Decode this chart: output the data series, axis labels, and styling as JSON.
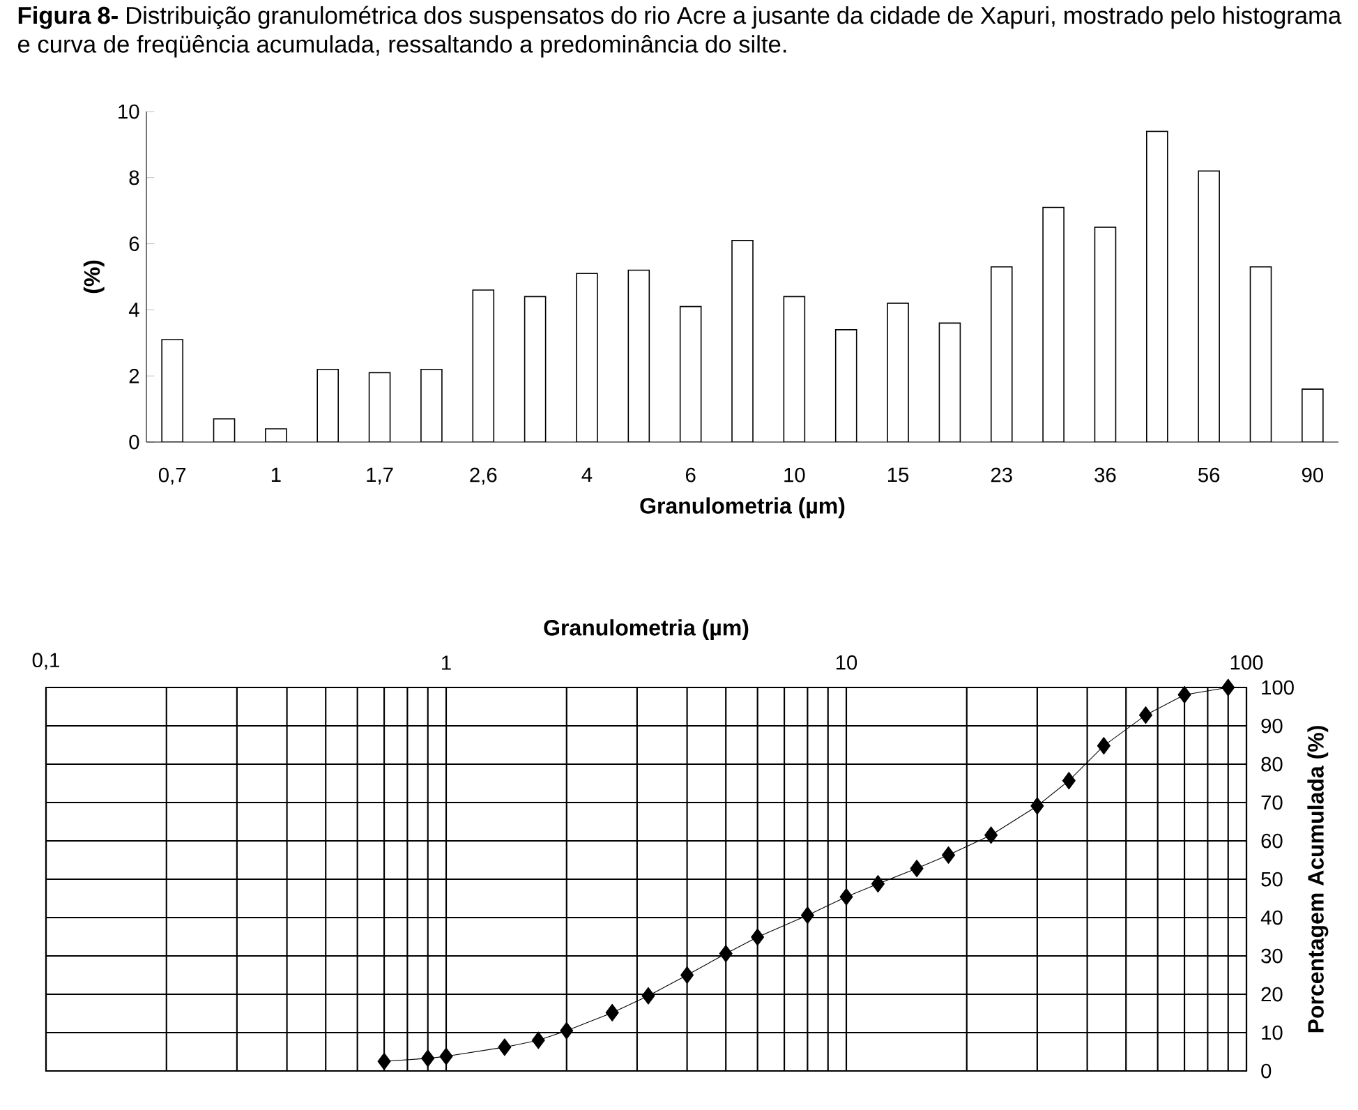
{
  "chart_data": [
    {
      "type": "bar",
      "title": "**Figura 8-** Distribuição granulométrica dos suspensatos do rio Acre a jusante da cidade de Xapuri, mostrado pelo histograma e curva de freqüência acumulada, ressaltando a predominância do silte.",
      "xlabel": "Granulometria (µm)",
      "ylabel": "(%)",
      "categories": [
        "0,7",
        null,
        "1",
        null,
        "1,7",
        null,
        "2,6",
        null,
        "4",
        null,
        "6",
        null,
        "10",
        null,
        "15",
        null,
        "23",
        null,
        "36",
        null,
        "56",
        null,
        "90"
      ],
      "values": [
        3.1,
        0.7,
        0.4,
        2.2,
        2.1,
        2.2,
        4.6,
        4.4,
        5.1,
        5.2,
        4.1,
        6.1,
        4.4,
        3.4,
        4.2,
        3.6,
        5.3,
        7.1,
        6.5,
        9.4,
        8.2,
        5.3,
        1.6
      ],
      "color": "#ffffff",
      "ylim": [
        0,
        10
      ],
      "yticks": [
        0,
        2,
        4,
        6,
        8,
        10
      ]
    },
    {
      "type": "line",
      "xlabel": "Granulometria (µm)",
      "ylabel": "Porcentagem Acumulada (%)",
      "log": "x",
      "grid": true,
      "marker": "diamond",
      "line_style": "solid",
      "color": "#000000",
      "x": [
        0.7,
        0.9,
        1,
        1.4,
        1.7,
        2,
        2.6,
        3.2,
        4,
        5,
        6,
        8,
        10,
        12,
        15,
        18,
        23,
        30,
        36,
        44,
        56,
        70,
        90
      ],
      "values": [
        2.5,
        3.3,
        3.8,
        6.2,
        8,
        10.5,
        15.2,
        19.6,
        25,
        30.6,
        34.9,
        40.6,
        45.4,
        48.8,
        52.8,
        56.3,
        61.5,
        69.1,
        75.7,
        84.8,
        92.8,
        98.1,
        100
      ],
      "xlim": [
        0.1,
        100
      ],
      "xticks": [
        {
          "value": 0.1,
          "label": "0,1"
        },
        1,
        10,
        100
      ],
      "ylim": [
        0,
        100
      ],
      "yticks": [
        0,
        10,
        20,
        30,
        40,
        50,
        60,
        70,
        80,
        90,
        100
      ]
    }
  ]
}
